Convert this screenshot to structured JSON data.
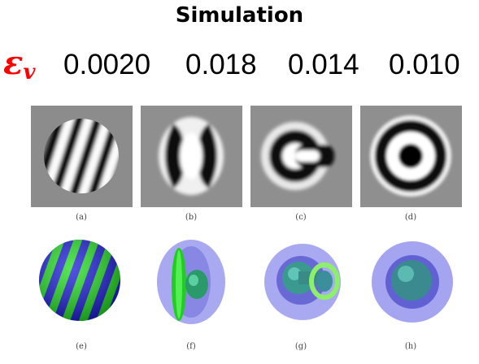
{
  "title": "Simulation",
  "epsilon_symbol": "ε",
  "epsilon_subscript": "v",
  "epsilon_values": [
    "0.0020",
    "0.018",
    "0.014",
    "0.010"
  ],
  "captions_top": [
    "(a)",
    "(b)",
    "(c)",
    "(d)"
  ],
  "captions_bottom": [
    "(e)",
    "(f)",
    "(g)",
    "(h)"
  ],
  "colors": {
    "epsilon": "#ff0000",
    "blue_band": "#1a1ad6",
    "green_band": "#22dd22",
    "shell": "#9a9af0"
  }
}
